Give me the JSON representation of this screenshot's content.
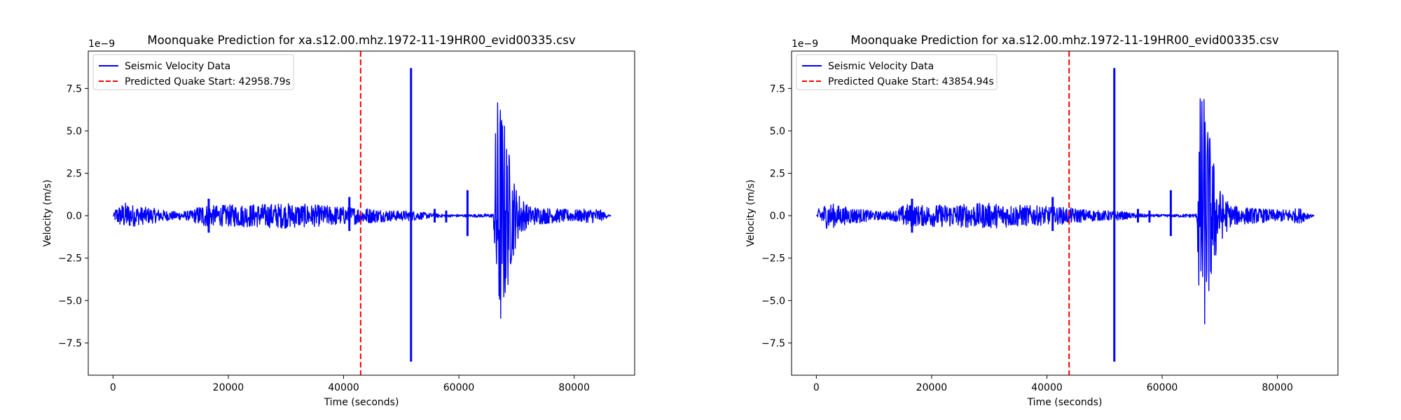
{
  "chart_data": [
    {
      "type": "line",
      "title": "Moonquake Prediction for xa.s12.00.mhz.1972-11-19HR00_evid00335.csv",
      "xlabel": "Time (seconds)",
      "ylabel": "Velocity (m/s)",
      "y_multiplier_label": "1e−9",
      "xlim": [
        -4300,
        90500
      ],
      "ylim": [
        -9.4,
        9.7
      ],
      "x_ticks": [
        0,
        20000,
        40000,
        60000,
        80000
      ],
      "x_tick_labels": [
        "0",
        "20000",
        "40000",
        "60000",
        "80000"
      ],
      "y_ticks": [
        -7.5,
        -5.0,
        -2.5,
        0.0,
        2.5,
        5.0,
        7.5
      ],
      "y_tick_labels": [
        "−7.5",
        "−5.0",
        "−2.5",
        "0.0",
        "2.5",
        "5.0",
        "7.5"
      ],
      "grid": false,
      "legend_position": "upper left",
      "series": [
        {
          "name": "Seismic Velocity Data",
          "kind": "seismic_trace",
          "color": "#0000ff",
          "x_range": [
            0,
            86400
          ],
          "envelope": [
            [
              0,
              0.0
            ],
            [
              500,
              0.5
            ],
            [
              2000,
              0.8
            ],
            [
              4500,
              0.55
            ],
            [
              7000,
              0.45
            ],
            [
              9500,
              0.3
            ],
            [
              11000,
              0.25
            ],
            [
              13500,
              0.3
            ],
            [
              15500,
              0.7
            ],
            [
              17500,
              0.6
            ],
            [
              20000,
              0.65
            ],
            [
              25000,
              0.7
            ],
            [
              30000,
              0.75
            ],
            [
              35000,
              0.65
            ],
            [
              40000,
              0.55
            ],
            [
              43000,
              0.5
            ],
            [
              46000,
              0.4
            ],
            [
              49000,
              0.3
            ],
            [
              52000,
              0.3
            ],
            [
              55000,
              0.15
            ],
            [
              58000,
              0.08
            ],
            [
              62000,
              0.08
            ],
            [
              66000,
              0.12
            ],
            [
              66500,
              7.2
            ],
            [
              67200,
              7.3
            ],
            [
              68000,
              5.5
            ],
            [
              69000,
              3.2
            ],
            [
              70000,
              1.6
            ],
            [
              72000,
              0.6
            ],
            [
              76000,
              0.45
            ],
            [
              80000,
              0.35
            ],
            [
              84000,
              0.45
            ],
            [
              86400,
              0.0
            ]
          ],
          "spikes": [
            {
              "x": 16600,
              "min": -1.0,
              "max": 1.0
            },
            {
              "x": 41000,
              "min": -0.9,
              "max": 1.1
            },
            {
              "x": 51700,
              "min": -8.6,
              "max": 8.7
            },
            {
              "x": 61500,
              "min": -1.2,
              "max": 1.5
            },
            {
              "x": 55800,
              "min": -0.4,
              "max": 0.4
            },
            {
              "x": 57800,
              "min": -0.4,
              "max": 0.3
            }
          ]
        },
        {
          "name": "Predicted Quake Start: 42958.79s",
          "kind": "vline",
          "color": "#ff0000",
          "style": "dashed",
          "x": 42958.79
        }
      ]
    },
    {
      "type": "line",
      "title": "Moonquake Prediction for xa.s12.00.mhz.1972-11-19HR00_evid00335.csv",
      "xlabel": "Time (seconds)",
      "ylabel": "Velocity (m/s)",
      "y_multiplier_label": "1e−9",
      "xlim": [
        -4300,
        90500
      ],
      "ylim": [
        -9.4,
        9.7
      ],
      "x_ticks": [
        0,
        20000,
        40000,
        60000,
        80000
      ],
      "x_tick_labels": [
        "0",
        "20000",
        "40000",
        "60000",
        "80000"
      ],
      "y_ticks": [
        -7.5,
        -5.0,
        -2.5,
        0.0,
        2.5,
        5.0,
        7.5
      ],
      "y_tick_labels": [
        "−7.5",
        "−5.0",
        "−2.5",
        "0.0",
        "2.5",
        "5.0",
        "7.5"
      ],
      "grid": false,
      "legend_position": "upper left",
      "series": [
        {
          "name": "Seismic Velocity Data",
          "kind": "seismic_trace",
          "color": "#0000ff",
          "x_range": [
            0,
            86400
          ],
          "envelope": [
            [
              0,
              0.0
            ],
            [
              500,
              0.5
            ],
            [
              2000,
              0.8
            ],
            [
              4500,
              0.55
            ],
            [
              7000,
              0.45
            ],
            [
              9500,
              0.3
            ],
            [
              11000,
              0.25
            ],
            [
              13500,
              0.3
            ],
            [
              15500,
              0.7
            ],
            [
              17500,
              0.6
            ],
            [
              20000,
              0.65
            ],
            [
              25000,
              0.7
            ],
            [
              30000,
              0.75
            ],
            [
              35000,
              0.65
            ],
            [
              40000,
              0.55
            ],
            [
              43000,
              0.5
            ],
            [
              46000,
              0.4
            ],
            [
              49000,
              0.3
            ],
            [
              52000,
              0.3
            ],
            [
              55000,
              0.15
            ],
            [
              58000,
              0.08
            ],
            [
              62000,
              0.08
            ],
            [
              66000,
              0.12
            ],
            [
              66500,
              7.2
            ],
            [
              67200,
              7.3
            ],
            [
              68000,
              5.5
            ],
            [
              69000,
              3.2
            ],
            [
              70000,
              1.6
            ],
            [
              72000,
              0.6
            ],
            [
              76000,
              0.45
            ],
            [
              80000,
              0.35
            ],
            [
              84000,
              0.45
            ],
            [
              86400,
              0.0
            ]
          ],
          "spikes": [
            {
              "x": 16600,
              "min": -1.0,
              "max": 1.0
            },
            {
              "x": 41000,
              "min": -0.9,
              "max": 1.1
            },
            {
              "x": 51700,
              "min": -8.6,
              "max": 8.7
            },
            {
              "x": 61500,
              "min": -1.2,
              "max": 1.5
            },
            {
              "x": 55800,
              "min": -0.4,
              "max": 0.4
            },
            {
              "x": 57800,
              "min": -0.4,
              "max": 0.3
            }
          ]
        },
        {
          "name": "Predicted Quake Start: 43854.94s",
          "kind": "vline",
          "color": "#ff0000",
          "style": "dashed",
          "x": 43854.94
        }
      ]
    }
  ]
}
